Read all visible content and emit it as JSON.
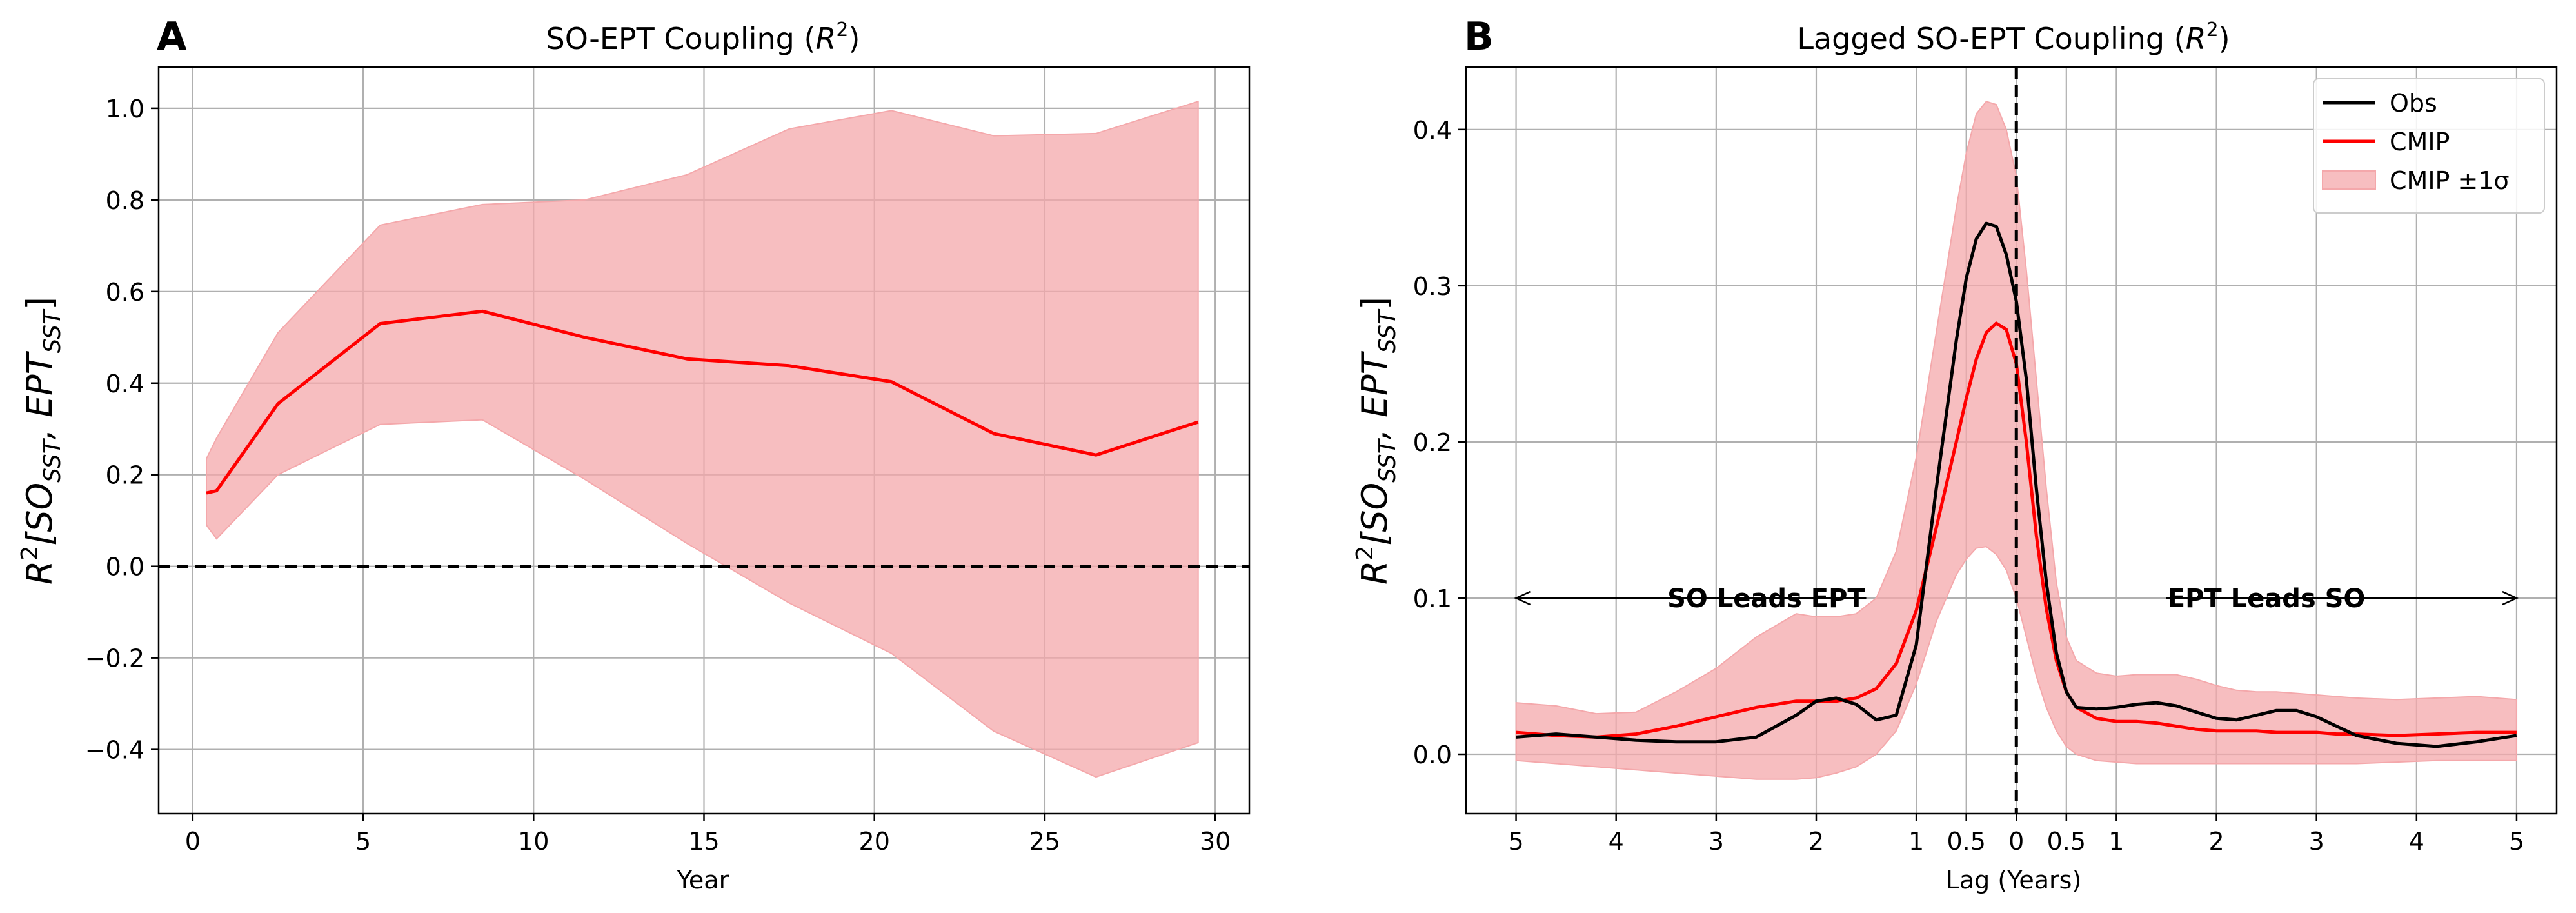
{
  "chart_data": [
    {
      "type": "line",
      "panel_letter": "A",
      "title": "SO-EPT Coupling (R²)",
      "xlabel": "Year",
      "ylabel": "R²[SO_SST, EPT_SST]",
      "xlim": [
        -1,
        31
      ],
      "ylim": [
        -0.54,
        1.09
      ],
      "xticks": [
        0,
        5,
        10,
        15,
        20,
        25,
        30
      ],
      "xtick_labels": [
        "0",
        "5",
        "10",
        "15",
        "20",
        "25",
        "30"
      ],
      "yticks": [
        -0.4,
        -0.2,
        0.0,
        0.2,
        0.4,
        0.6,
        0.8,
        1.0
      ],
      "ytick_labels": [
        "−0.4",
        "−0.2",
        "0.0",
        "0.2",
        "0.4",
        "0.6",
        "0.8",
        "1.0"
      ],
      "grid": true,
      "reference_line": {
        "y": 0.0,
        "style": "dashed",
        "color": "#000000"
      },
      "series": [
        {
          "kind": "band",
          "color": "#f4a8ab",
          "x": [
            0.4,
            0.7,
            2.5,
            5.5,
            8.5,
            11.5,
            14.5,
            17.5,
            20.5,
            23.5,
            26.5,
            29.5
          ],
          "upper": [
            0.235,
            0.28,
            0.51,
            0.745,
            0.79,
            0.8,
            0.855,
            0.955,
            0.995,
            0.94,
            0.945,
            1.015
          ],
          "lower": [
            0.09,
            0.06,
            0.2,
            0.31,
            0.32,
            0.19,
            0.05,
            -0.08,
            -0.19,
            -0.36,
            -0.46,
            -0.385
          ]
        },
        {
          "kind": "line",
          "color": "#ff0000",
          "x": [
            0.4,
            0.7,
            2.5,
            5.5,
            8.5,
            11.5,
            14.5,
            17.5,
            20.5,
            23.5,
            26.5,
            29.5
          ],
          "y": [
            0.16,
            0.165,
            0.355,
            0.53,
            0.557,
            0.5,
            0.453,
            0.438,
            0.403,
            0.29,
            0.243,
            0.315
          ]
        }
      ]
    },
    {
      "type": "line",
      "panel_letter": "B",
      "title": "Lagged SO-EPT Coupling (R²)",
      "xlabel": "Lag (Years)",
      "ylabel": "R²[SO_SST, EPT_SST]",
      "xlim": [
        -5.5,
        5.4
      ],
      "ylim": [
        -0.038,
        0.44
      ],
      "xticks": [
        -5,
        -4,
        -3,
        -2,
        -1,
        -0.5,
        0,
        0.5,
        1,
        2,
        3,
        4,
        5
      ],
      "xtick_labels": [
        "5",
        "4",
        "3",
        "2",
        "1",
        "0.5",
        "0",
        "0.5",
        "1",
        "2",
        "3",
        "4",
        "5"
      ],
      "yticks": [
        0.0,
        0.1,
        0.2,
        0.3,
        0.4
      ],
      "ytick_labels": [
        "0.0",
        "0.1",
        "0.2",
        "0.3",
        "0.4"
      ],
      "grid": true,
      "reference_vline": {
        "x": 0,
        "style": "dashed",
        "color": "#000000"
      },
      "legend": {
        "position": "top-right",
        "entries": [
          {
            "label": "Obs",
            "color": "#000000",
            "kind": "line"
          },
          {
            "label": "CMIP",
            "color": "#ff0000",
            "kind": "line"
          },
          {
            "label": "CMIP ±1σ",
            "color": "#f4a8ab",
            "kind": "patch"
          }
        ]
      },
      "annotations": [
        {
          "text": "SO Leads EPT",
          "x": -2.5,
          "y": 0.1,
          "arrow_from": -1.5,
          "arrow_to": -5.0
        },
        {
          "text": "EPT Leads SO",
          "x": 2.5,
          "y": 0.1,
          "arrow_from": 1.5,
          "arrow_to": 5.0
        }
      ],
      "x": [
        -5.0,
        -4.6,
        -4.2,
        -3.8,
        -3.4,
        -3.0,
        -2.6,
        -2.2,
        -2.0,
        -1.8,
        -1.6,
        -1.4,
        -1.2,
        -1.0,
        -0.8,
        -0.6,
        -0.5,
        -0.4,
        -0.3,
        -0.2,
        -0.1,
        0.0,
        0.1,
        0.2,
        0.3,
        0.4,
        0.5,
        0.6,
        0.8,
        1.0,
        1.2,
        1.4,
        1.6,
        1.8,
        2.0,
        2.2,
        2.4,
        2.6,
        2.8,
        3.0,
        3.2,
        3.4,
        3.8,
        4.2,
        4.6,
        5.0
      ],
      "series": [
        {
          "name": "CMIP ±1σ",
          "kind": "band",
          "color": "#f4a8ab",
          "upper": [
            0.033,
            0.031,
            0.026,
            0.027,
            0.04,
            0.055,
            0.075,
            0.09,
            0.088,
            0.088,
            0.09,
            0.1,
            0.13,
            0.19,
            0.27,
            0.35,
            0.385,
            0.41,
            0.418,
            0.416,
            0.4,
            0.37,
            0.31,
            0.24,
            0.17,
            0.11,
            0.075,
            0.06,
            0.052,
            0.05,
            0.051,
            0.051,
            0.051,
            0.048,
            0.044,
            0.041,
            0.04,
            0.04,
            0.039,
            0.038,
            0.037,
            0.036,
            0.035,
            0.036,
            0.037,
            0.035
          ],
          "lower": [
            -0.004,
            -0.006,
            -0.008,
            -0.01,
            -0.012,
            -0.014,
            -0.016,
            -0.016,
            -0.015,
            -0.012,
            -0.008,
            0.0,
            0.015,
            0.045,
            0.085,
            0.115,
            0.125,
            0.132,
            0.133,
            0.128,
            0.118,
            0.1,
            0.075,
            0.05,
            0.03,
            0.015,
            0.005,
            0.0,
            -0.004,
            -0.005,
            -0.006,
            -0.006,
            -0.006,
            -0.006,
            -0.006,
            -0.006,
            -0.006,
            -0.006,
            -0.006,
            -0.006,
            -0.006,
            -0.006,
            -0.005,
            -0.004,
            -0.004,
            -0.004
          ]
        },
        {
          "name": "CMIP",
          "kind": "line",
          "color": "#ff0000",
          "values": [
            0.014,
            0.012,
            0.011,
            0.013,
            0.018,
            0.024,
            0.03,
            0.034,
            0.034,
            0.034,
            0.036,
            0.042,
            0.058,
            0.092,
            0.145,
            0.2,
            0.228,
            0.253,
            0.27,
            0.276,
            0.272,
            0.25,
            0.2,
            0.14,
            0.093,
            0.06,
            0.04,
            0.03,
            0.023,
            0.021,
            0.021,
            0.02,
            0.018,
            0.016,
            0.015,
            0.015,
            0.015,
            0.014,
            0.014,
            0.014,
            0.013,
            0.013,
            0.012,
            0.013,
            0.014,
            0.014
          ]
        },
        {
          "name": "Obs",
          "kind": "line",
          "color": "#000000",
          "values": [
            0.011,
            0.013,
            0.011,
            0.009,
            0.008,
            0.008,
            0.011,
            0.025,
            0.034,
            0.036,
            0.032,
            0.022,
            0.025,
            0.07,
            0.17,
            0.265,
            0.305,
            0.33,
            0.34,
            0.338,
            0.32,
            0.29,
            0.24,
            0.17,
            0.11,
            0.065,
            0.04,
            0.03,
            0.029,
            0.03,
            0.032,
            0.033,
            0.031,
            0.027,
            0.023,
            0.022,
            0.025,
            0.028,
            0.028,
            0.024,
            0.018,
            0.012,
            0.007,
            0.005,
            0.008,
            0.012
          ]
        }
      ]
    }
  ]
}
